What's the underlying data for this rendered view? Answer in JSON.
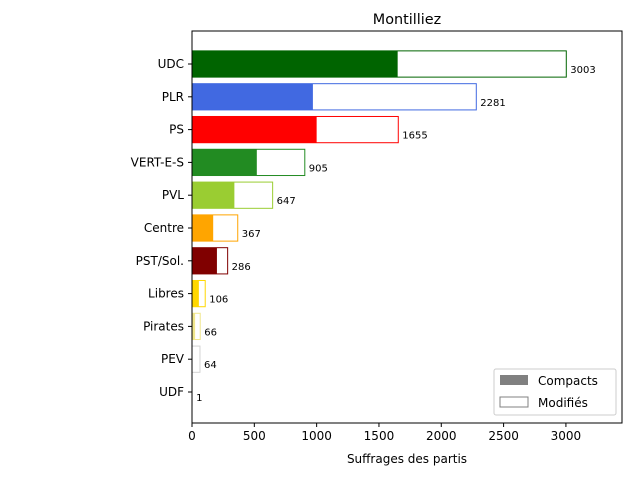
{
  "chart_data": {
    "type": "bar",
    "orientation": "horizontal",
    "title": "Montilliez",
    "xlabel": "Suffrages des partis",
    "ylabel": "",
    "xlim": [
      0,
      3450
    ],
    "xticks": [
      0,
      500,
      1000,
      1500,
      2000,
      2500,
      3000
    ],
    "categories": [
      "UDC",
      "PLR",
      "PS",
      "VERT-E-S",
      "PVL",
      "Centre",
      "PST/Sol.",
      "Libres",
      "Pirates",
      "PEV",
      "UDF"
    ],
    "colors": [
      "#006400",
      "#4169e1",
      "#ff0000",
      "#228b22",
      "#9acd32",
      "#ffa500",
      "#800000",
      "#ffd700",
      "#f0e68c",
      "#d3d3d3",
      "#ffffff"
    ],
    "series": [
      {
        "name": "Compacts",
        "values": [
          1650,
          970,
          1000,
          520,
          340,
          170,
          200,
          55,
          25,
          0,
          0
        ]
      },
      {
        "name": "Modifiés",
        "values": [
          1353,
          1311,
          655,
          385,
          307,
          197,
          86,
          51,
          41,
          64,
          1
        ]
      }
    ],
    "totals": [
      3003,
      2281,
      1655,
      905,
      647,
      367,
      286,
      106,
      66,
      64,
      1
    ],
    "legend": {
      "position": "bottom-right",
      "items": [
        "Compacts",
        "Modifiés"
      ],
      "colors": [
        "#808080",
        "#ffffff"
      ]
    },
    "grid": false
  }
}
